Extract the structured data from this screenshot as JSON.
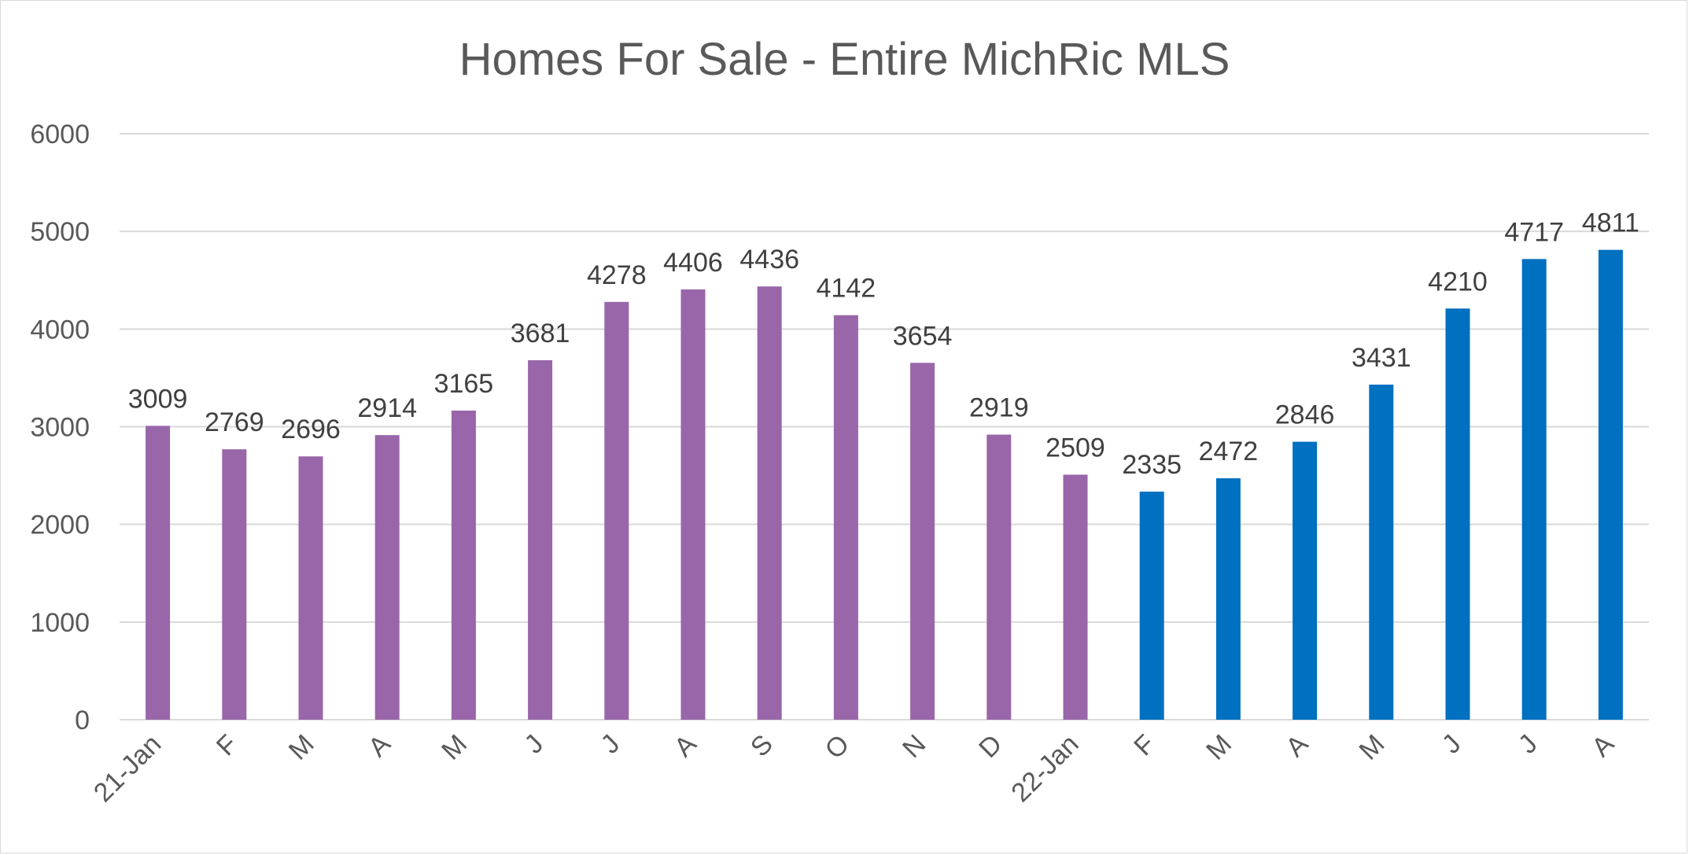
{
  "chart_data": {
    "type": "bar",
    "title": "Homes For Sale - Entire MichRic MLS",
    "xlabel": "",
    "ylabel": "",
    "ylim": [
      0,
      6000
    ],
    "yticks": [
      0,
      1000,
      2000,
      3000,
      4000,
      5000,
      6000
    ],
    "grid": true,
    "legend": "none",
    "categories": [
      "21-Jan",
      "F",
      "M",
      "A",
      "M",
      "J",
      "J",
      "A",
      "S",
      "O",
      "N",
      "D",
      "22-Jan",
      "F",
      "M",
      "A",
      "M",
      "J",
      "J",
      "A"
    ],
    "values": [
      3009,
      2769,
      2696,
      2914,
      3165,
      3681,
      4278,
      4406,
      4436,
      4142,
      3654,
      2919,
      2509,
      2335,
      2472,
      2846,
      3431,
      4210,
      4717,
      4811
    ],
    "bar_colors": [
      "#9966aa",
      "#9966aa",
      "#9966aa",
      "#9966aa",
      "#9966aa",
      "#9966aa",
      "#9966aa",
      "#9966aa",
      "#9966aa",
      "#9966aa",
      "#9966aa",
      "#9966aa",
      "#9966aa",
      "#0070c0",
      "#0070c0",
      "#0070c0",
      "#0070c0",
      "#0070c0",
      "#0070c0",
      "#0070c0"
    ],
    "colors": {
      "purple": "#9966aa",
      "blue": "#0070c0",
      "grid": "#d9d9d9",
      "axis_text": "#595959",
      "label_text": "#404040"
    }
  }
}
